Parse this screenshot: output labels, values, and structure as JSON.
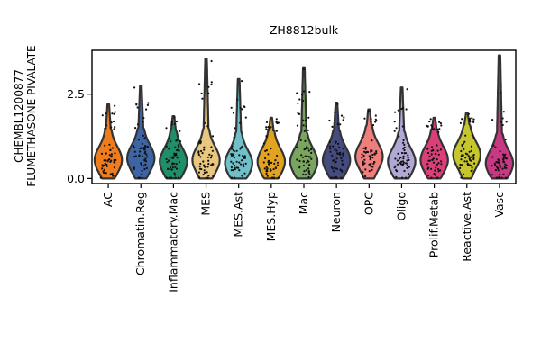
{
  "chart_data": {
    "type": "violin",
    "title": "ZH8812bulk",
    "ylabel": [
      "CHEMBL1200877",
      "FLUMETHASONE PIVALATE"
    ],
    "xlabel": "",
    "ylim": [
      -0.15,
      3.8
    ],
    "yticks": [
      0.0,
      2.5
    ],
    "ytick_labels": [
      "0.0",
      "2.5"
    ],
    "grid": false,
    "legend": "none",
    "categories": [
      "AC",
      "Chromatin.Reg",
      "Inflammatory.Mac",
      "MES",
      "MES.Ast",
      "MES.Hyp",
      "Mac",
      "Neuron",
      "OPC",
      "Oligo",
      "Prolif.Metab",
      "Reactive.Ast",
      "Vasc"
    ],
    "colors": [
      "#f07c1d",
      "#3d65a5",
      "#1f8f6a",
      "#e8c77e",
      "#6fc0c8",
      "#e3a21f",
      "#79a55f",
      "#444b7e",
      "#ef7f7d",
      "#b2a8d6",
      "#da3f7c",
      "#c6c62d",
      "#c83883"
    ],
    "max_values": [
      2.2,
      2.75,
      1.85,
      3.55,
      2.95,
      1.8,
      3.3,
      2.25,
      2.05,
      2.7,
      1.8,
      1.95,
      3.65
    ],
    "median_values": [
      0.55,
      0.6,
      0.5,
      0.55,
      0.45,
      0.5,
      0.5,
      0.55,
      0.65,
      0.5,
      0.55,
      0.7,
      0.45
    ]
  }
}
